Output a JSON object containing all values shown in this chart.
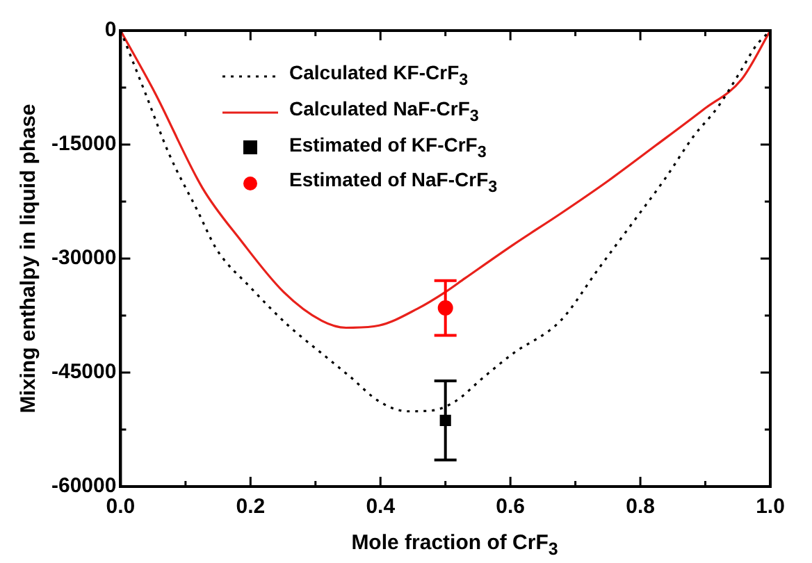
{
  "chart_data": {
    "type": "line",
    "xlabel": "Mole fraction of CrF$_{3}$",
    "ylabel": "Mixing enthalpy in liquid phase",
    "xlim": [
      0,
      1
    ],
    "xticks": [
      {
        "value": 0,
        "label": "0.0"
      },
      {
        "value": 0.1,
        "label": null
      },
      {
        "value": 0.2,
        "label": "0.2"
      },
      {
        "value": 0.3,
        "label": null
      },
      {
        "value": 0.4,
        "label": "0.4"
      },
      {
        "value": 0.5,
        "label": null
      },
      {
        "value": 0.6,
        "label": "0.6"
      },
      {
        "value": 0.7,
        "label": null
      },
      {
        "value": 0.8,
        "label": "0.8"
      },
      {
        "value": 0.9,
        "label": null
      },
      {
        "value": 1,
        "label": "1.0"
      }
    ],
    "ylim": [
      -60000,
      0
    ],
    "yticks": [
      -60000,
      {
        "value": -52500,
        "label": null
      },
      -45000,
      {
        "value": -37500,
        "label": null
      },
      -30000,
      {
        "value": -22500,
        "label": null
      },
      -15000,
      {
        "value": -7500,
        "label": null
      },
      0
    ],
    "grid": false,
    "legend": "top left",
    "series": [
      {
        "name": "Calculated KF-CrF$_{3}$",
        "color": "#000000",
        "line_style": "dotted",
        "marker": "none",
        "x": [
          0,
          0.038,
          0.075,
          0.119,
          0.148,
          0.2,
          0.258,
          0.31,
          0.354,
          0.398,
          0.442,
          0.479,
          0.515,
          0.559,
          0.604,
          0.677,
          0.736,
          0.795,
          0.838,
          0.882,
          0.919,
          0.956,
          0.978,
          1
        ],
        "values": [
          0,
          -8200,
          -16300,
          -23800,
          -28800,
          -33800,
          -38800,
          -42500,
          -45600,
          -48800,
          -50100,
          -50000,
          -48800,
          -45600,
          -42500,
          -38200,
          -31300,
          -24500,
          -19500,
          -13900,
          -10100,
          -5100,
          -2000,
          0
        ]
      },
      {
        "name": "Calculated NaF-CrF$_{3}$",
        "color": "#e8211b",
        "line_style": "solid",
        "marker": "none",
        "x": [
          0,
          0.053,
          0.126,
          0.185,
          0.251,
          0.31,
          0.347,
          0.398,
          0.457,
          0.5,
          0.53,
          0.604,
          0.677,
          0.75,
          0.824,
          0.897,
          0.956,
          1
        ],
        "values": [
          0,
          -8200,
          -20700,
          -27600,
          -34400,
          -38200,
          -39100,
          -38800,
          -36600,
          -34400,
          -32600,
          -28200,
          -24100,
          -19800,
          -15100,
          -10400,
          -6400,
          0
        ]
      },
      {
        "name": "Estimated of KF-CrF$_{3}$",
        "type": "scatter",
        "color": "#000000",
        "marker": "square",
        "x": [
          0.5
        ],
        "values": [
          -51300
        ],
        "errors": [
          5200
        ]
      },
      {
        "name": "Estimated of NaF-CrF$_{3}$",
        "type": "scatter",
        "color": "#ff0000",
        "marker": "circle",
        "x": [
          0.5
        ],
        "values": [
          -36500
        ],
        "errors": [
          3600
        ]
      }
    ]
  }
}
